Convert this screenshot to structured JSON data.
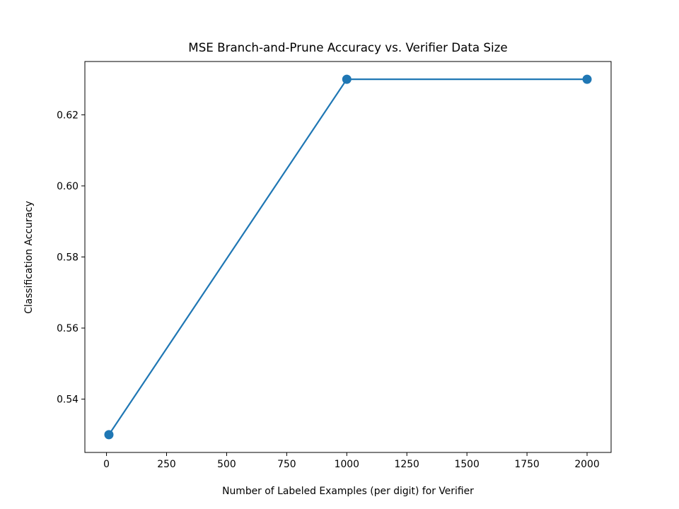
{
  "chart_data": {
    "type": "line",
    "title": "MSE Branch-and-Prune Accuracy vs. Verifier Data Size",
    "xlabel": "Number of Labeled Examples (per digit) for Verifier",
    "ylabel": "Classification Accuracy",
    "x": [
      10,
      1000,
      2000
    ],
    "series": [
      {
        "values": [
          0.53,
          0.63,
          0.63
        ],
        "color": "#1f77b4",
        "marker": "circle"
      }
    ],
    "xlim": [
      -90,
      2100
    ],
    "ylim": [
      0.525,
      0.635
    ],
    "xticks": [
      0,
      250,
      500,
      750,
      1000,
      1250,
      1500,
      1750,
      2000
    ],
    "xtick_labels": [
      "0",
      "250",
      "500",
      "750",
      "1000",
      "1250",
      "1500",
      "1750",
      "2000"
    ],
    "yticks": [
      0.54,
      0.56,
      0.58,
      0.6,
      0.62
    ],
    "ytick_labels": [
      "0.54",
      "0.56",
      "0.58",
      "0.60",
      "0.62"
    ],
    "grid": false
  }
}
